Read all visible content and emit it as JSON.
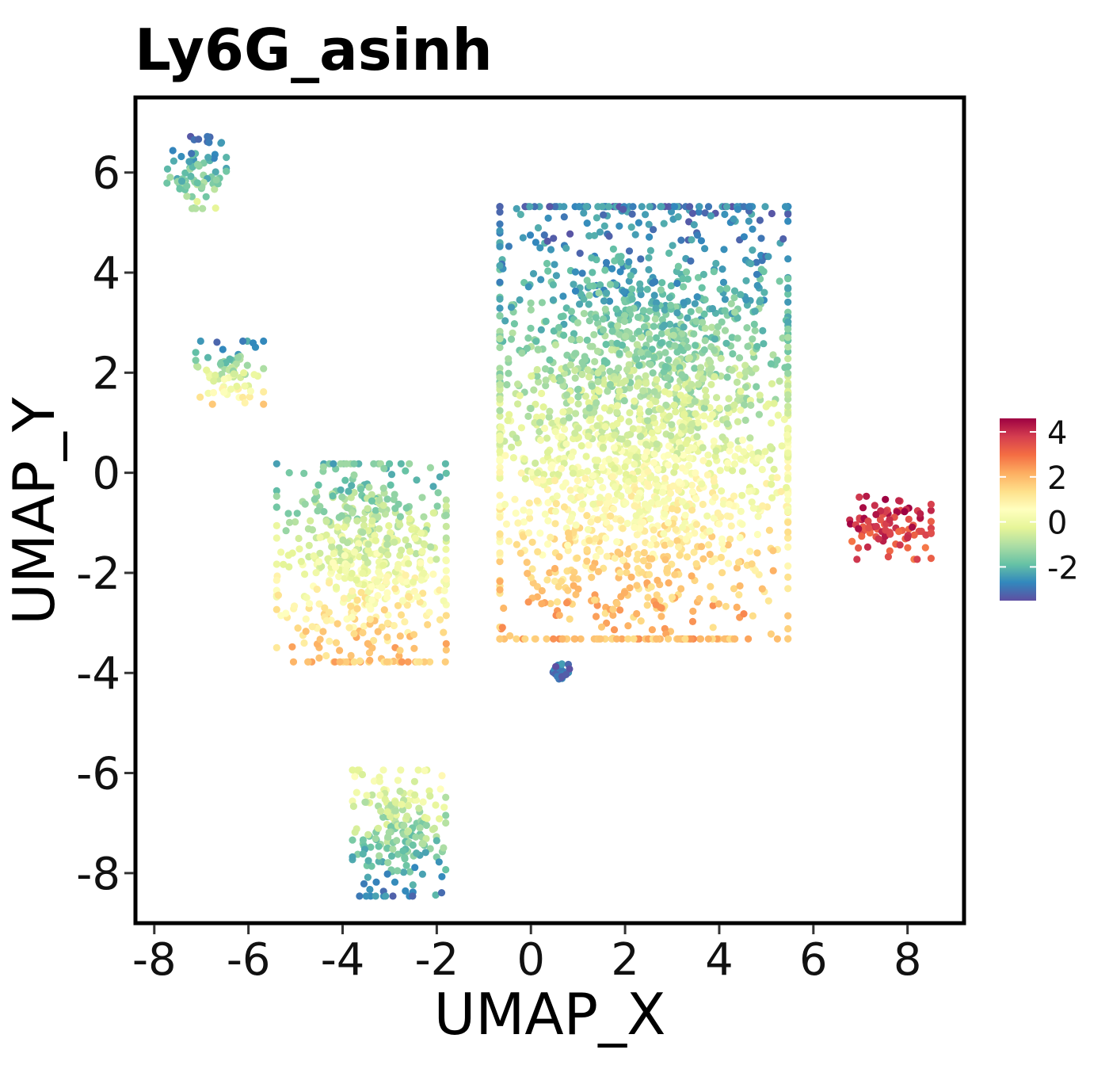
{
  "chart_data": {
    "type": "scatter",
    "title": "Ly6G_asinh",
    "xlabel": "UMAP_X",
    "ylabel": "UMAP_Y",
    "xlim": [
      -8.4,
      9.2
    ],
    "ylim": [
      -9.0,
      7.5
    ],
    "xticks": [
      -8,
      -6,
      -4,
      -2,
      0,
      2,
      4,
      6,
      8
    ],
    "xtick_labels": [
      "-8",
      "-6",
      "-4",
      "-2",
      "0",
      "2",
      "4",
      "6",
      "8"
    ],
    "yticks": [
      6,
      4,
      2,
      0,
      -2,
      -4,
      -6,
      -8
    ],
    "ytick_labels": [
      "6",
      "4",
      "2",
      "0",
      "-2",
      "-4",
      "-6",
      "-8"
    ],
    "grid": false,
    "legend_position": "right",
    "colorbar": {
      "min": -3.5,
      "max": 4.6,
      "ticks": [
        4,
        2,
        0,
        -2
      ],
      "tick_labels": [
        "4",
        "2",
        "0",
        "-2"
      ],
      "palette": [
        "#5e4fa2",
        "#3288bd",
        "#66c2a5",
        "#abdda4",
        "#e6f598",
        "#ffffbf",
        "#fee08b",
        "#fdae61",
        "#f46d43",
        "#d53e4f",
        "#9e0142"
      ]
    },
    "clusters": [
      {
        "center": [
          -7.1,
          6.0
        ],
        "spread": [
          0.35,
          0.4
        ],
        "value_top": -2.8,
        "value_bottom": -0.8
      },
      {
        "center": [
          -6.4,
          2.0
        ],
        "spread": [
          0.4,
          0.35
        ],
        "value_top": -2.5,
        "value_bottom": 1.2
      },
      {
        "center": [
          -3.6,
          -1.8
        ],
        "spread": [
          1.0,
          1.1
        ],
        "value_top": -1.8,
        "value_bottom": 1.8
      },
      {
        "center": [
          -2.8,
          -7.2
        ],
        "spread": [
          0.55,
          0.7
        ],
        "value_top": 0.2,
        "value_bottom": -2.6
      },
      {
        "center": [
          2.4,
          1.0
        ],
        "spread": [
          1.7,
          2.4
        ],
        "value_top": -2.8,
        "value_bottom": 2.0
      },
      {
        "center": [
          0.65,
          -4.0
        ],
        "spread": [
          0.1,
          0.1
        ],
        "value_top": -3.0,
        "value_bottom": -3.0
      },
      {
        "center": [
          7.6,
          -1.1
        ],
        "spread": [
          0.5,
          0.35
        ],
        "value_top": 4.4,
        "value_bottom": 3.2
      }
    ]
  }
}
